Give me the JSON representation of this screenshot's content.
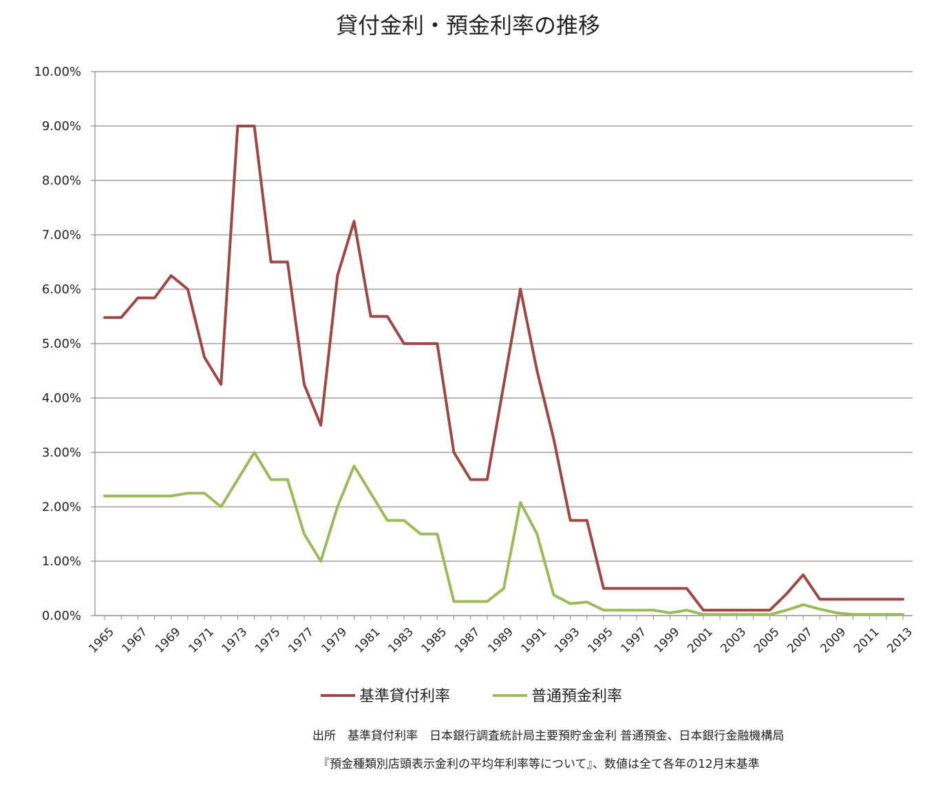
{
  "chart_data": {
    "type": "line",
    "title": "貸付金利・預金利率の推移",
    "xlabel": "",
    "ylabel": "",
    "x": [
      1965,
      1966,
      1967,
      1968,
      1969,
      1970,
      1971,
      1972,
      1973,
      1974,
      1975,
      1976,
      1977,
      1978,
      1979,
      1980,
      1981,
      1982,
      1983,
      1984,
      1985,
      1986,
      1987,
      1988,
      1989,
      1990,
      1991,
      1992,
      1993,
      1994,
      1995,
      1996,
      1997,
      1998,
      1999,
      2000,
      2001,
      2002,
      2003,
      2004,
      2005,
      2006,
      2007,
      2008,
      2009,
      2010,
      2011,
      2012,
      2013
    ],
    "x_tick_labels": [
      "1965",
      "1967",
      "1969",
      "1971",
      "1973",
      "1975",
      "1977",
      "1979",
      "1981",
      "1983",
      "1985",
      "1987",
      "1989",
      "1991",
      "1993",
      "1995",
      "1997",
      "1999",
      "2001",
      "2003",
      "2005",
      "2007",
      "2009",
      "2011",
      "2013"
    ],
    "ylim": [
      0,
      10
    ],
    "y_tick_labels": [
      "0.00%",
      "1.00%",
      "2.00%",
      "3.00%",
      "4.00%",
      "5.00%",
      "6.00%",
      "7.00%",
      "8.00%",
      "9.00%",
      "10.00%"
    ],
    "y_unit": "%",
    "grid": "horizontal",
    "legend_position": "bottom",
    "series": [
      {
        "name": "基準貸付利率",
        "color": "#a04643",
        "values": [
          5.48,
          5.48,
          5.84,
          5.84,
          6.25,
          6.0,
          4.75,
          4.25,
          9.0,
          9.0,
          6.5,
          6.5,
          4.25,
          3.5,
          6.25,
          7.25,
          5.5,
          5.5,
          5.0,
          5.0,
          5.0,
          3.0,
          2.5,
          2.5,
          4.25,
          6.0,
          4.5,
          3.25,
          1.75,
          1.75,
          0.5,
          0.5,
          0.5,
          0.5,
          0.5,
          0.5,
          0.1,
          0.1,
          0.1,
          0.1,
          0.1,
          0.4,
          0.75,
          0.3,
          0.3,
          0.3,
          0.3,
          0.3,
          0.3
        ]
      },
      {
        "name": "普通預金利率",
        "color": "#9bbb59",
        "values": [
          2.2,
          2.2,
          2.2,
          2.2,
          2.2,
          2.25,
          2.25,
          2.0,
          2.5,
          3.0,
          2.5,
          2.5,
          1.5,
          1.0,
          2.0,
          2.75,
          2.25,
          1.75,
          1.75,
          1.5,
          1.5,
          0.26,
          0.26,
          0.26,
          0.5,
          2.08,
          1.5,
          0.38,
          0.22,
          0.25,
          0.1,
          0.1,
          0.1,
          0.1,
          0.05,
          0.1,
          0.02,
          0.02,
          0.02,
          0.02,
          0.02,
          0.1,
          0.2,
          0.12,
          0.05,
          0.02,
          0.02,
          0.02,
          0.02
        ]
      }
    ],
    "source_line1": "出所　基準貸付利率　日本銀行調査統計局主要預貯金金利 普通預金、日本銀行金融機構局",
    "source_line2": "『預金種類別店頭表示金利の平均年利率等について』、数値は全て各年の12月末基準"
  }
}
